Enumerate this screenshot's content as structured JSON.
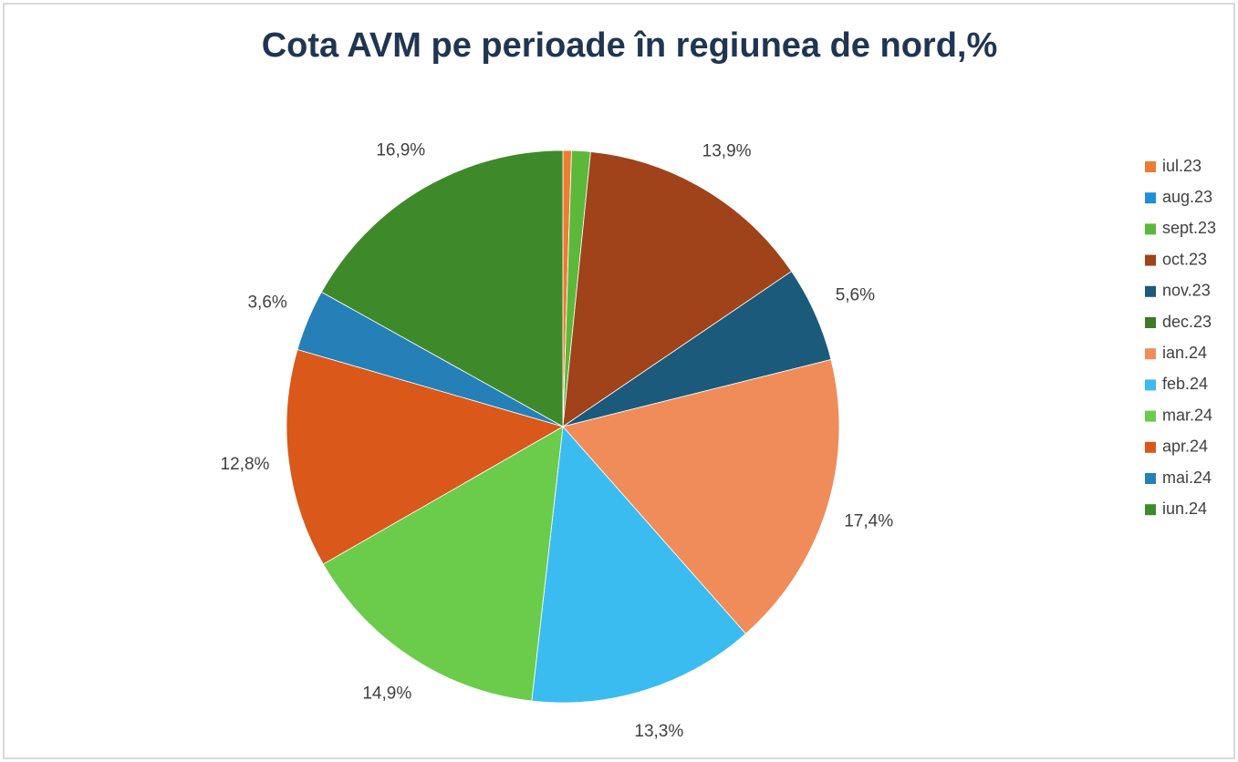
{
  "chart_data": {
    "type": "pie",
    "title": "Cota AVM pe perioade în regiunea de nord,%",
    "categories": [
      "iul.23",
      "aug.23",
      "sept.23",
      "oct.23",
      "nov.23",
      "dec.23",
      "ian.24",
      "feb.24",
      "mar.24",
      "apr.24",
      "mai.24",
      "iun.24"
    ],
    "values": [
      0.5,
      0,
      1.1,
      13.9,
      5.6,
      0,
      17.4,
      13.3,
      14.9,
      12.8,
      3.6,
      16.9
    ],
    "value_labels": [
      null,
      null,
      null,
      "13,9%",
      "5,6%",
      null,
      "17,4%",
      "13,3%",
      "14,9%",
      "12,8%",
      "3,6%",
      "16,9%"
    ],
    "colors": [
      "#ed7d31",
      "#1f8fd6",
      "#5cb83a",
      "#a0421a",
      "#1b5a7a",
      "#3d7a2a",
      "#f08c5a",
      "#3bbcf0",
      "#6acc4a",
      "#d9581a",
      "#2580b8",
      "#3e8a2a"
    ],
    "legend": "right"
  }
}
